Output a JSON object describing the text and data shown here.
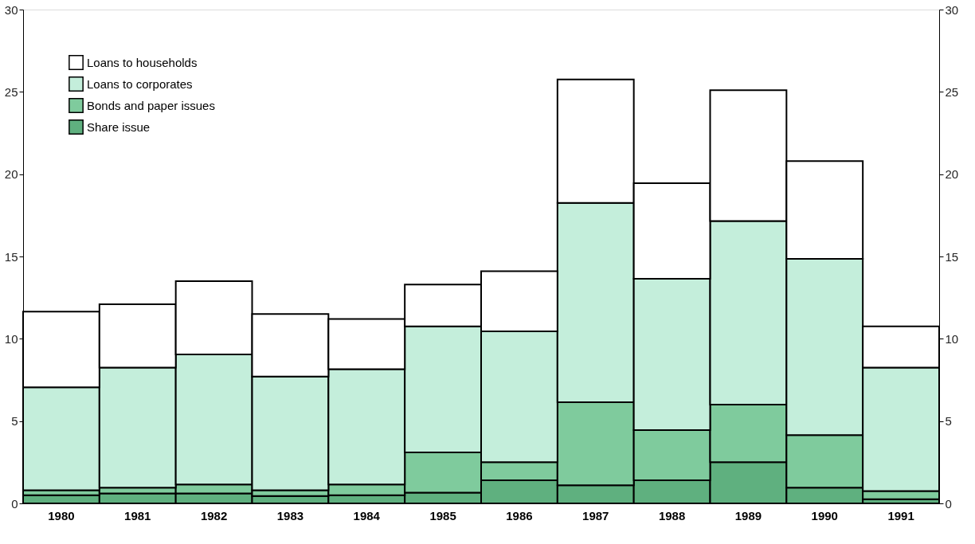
{
  "chart_data": {
    "type": "bar",
    "stacked": true,
    "categories": [
      "1980",
      "1981",
      "1982",
      "1983",
      "1984",
      "1985",
      "1986",
      "1987",
      "1988",
      "1989",
      "1990",
      "1991"
    ],
    "series": [
      {
        "name": "Share issue",
        "color": "#5fb07f",
        "values": [
          0.5,
          0.6,
          0.6,
          0.45,
          0.5,
          0.65,
          1.4,
          1.1,
          1.4,
          2.5,
          0.95,
          0.25
        ]
      },
      {
        "name": "Bonds and paper issues",
        "color": "#7fcb9d",
        "values": [
          0.3,
          0.35,
          0.55,
          0.35,
          0.65,
          2.45,
          1.1,
          5.05,
          3.05,
          3.5,
          3.2,
          0.5
        ]
      },
      {
        "name": "Loans to corporates",
        "color": "#c4eedb",
        "values": [
          6.25,
          7.3,
          7.9,
          6.9,
          7.0,
          7.65,
          7.95,
          12.1,
          9.2,
          11.15,
          10.7,
          7.5
        ]
      },
      {
        "name": "Loans to households",
        "color": "#ffffff",
        "values": [
          4.6,
          3.85,
          4.45,
          3.8,
          3.05,
          2.55,
          3.65,
          7.5,
          5.8,
          7.95,
          5.95,
          2.5
        ]
      }
    ],
    "ylim": [
      0,
      30
    ],
    "yticks": [
      0,
      5,
      10,
      15,
      20,
      25,
      30
    ],
    "y2lim": [
      0,
      30
    ],
    "y2ticks": [
      0,
      5,
      10,
      15,
      20,
      25,
      30
    ],
    "grid": false,
    "legend": "top left"
  }
}
